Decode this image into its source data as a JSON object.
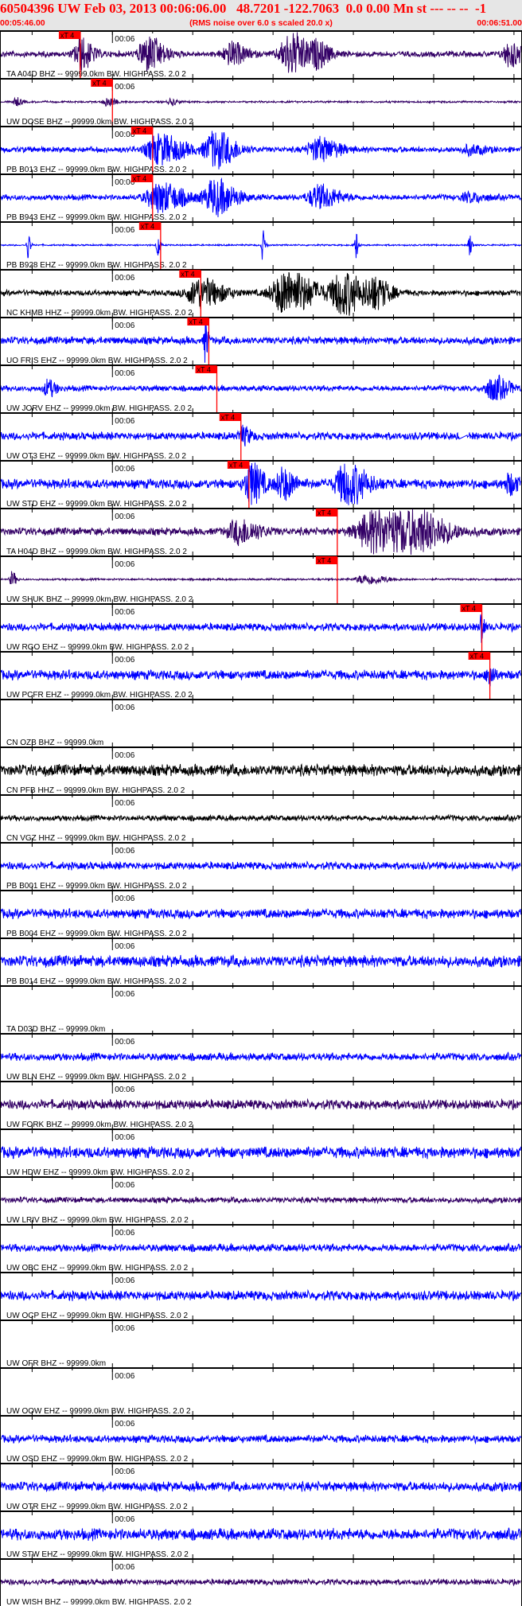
{
  "header": {
    "title": "60504396 UW Feb 03, 2013 00:06:06.00   48.7201 -122.7063  0.0 0.00 Mn st --- -- --  -1",
    "start_time": "00:05:46.00",
    "end_time": "00:06:51.00",
    "note": "(RMS noise over 6.0 s scaled 20.0 x)"
  },
  "axis": {
    "minute_label": "00:06",
    "major_tick_seconds": 10,
    "minor_tick_seconds": 5
  },
  "pick_label": "xT 4",
  "colors": {
    "header_text": "#ff0000",
    "header_bg": "#e6e6e6",
    "pick": "#ff0000",
    "navy": "#330066",
    "blue": "#0000ff",
    "black": "#000000"
  },
  "traces": [
    {
      "label": "TA A04D BHZ -- 99999.0km BW. HIGHPASS. 2.0  2",
      "color": "#330066",
      "pick": "00:05:56.0"
    },
    {
      "label": "UW DOSE BHZ -- 99999.0km BW. HIGHPASS. 2.0  2",
      "color": "#330066",
      "pick": "00:06:00.0"
    },
    {
      "label": "PB B013 EHZ -- 99999.0km BW. HIGHPASS. 2.0  2",
      "color": "#0000ff",
      "pick": "00:06:05.0"
    },
    {
      "label": "PB B943 EHZ -- 99999.0km BW. HIGHPASS. 2.0  2",
      "color": "#0000ff",
      "pick": "00:06:05.0"
    },
    {
      "label": "PB B928 EHZ -- 99999.0km BW. HIGHPASS. 2.0  2",
      "color": "#0000ff",
      "pick": "00:06:06.0"
    },
    {
      "label": "NC KHMB HHZ -- 99999.0km BW. HIGHPASS. 2.0  2",
      "color": "#000000",
      "pick": "00:06:11.0"
    },
    {
      "label": "UO FRIS EHZ -- 99999.0km BW. HIGHPASS. 2.0  2",
      "color": "#0000ff",
      "pick": "00:06:12.0"
    },
    {
      "label": "UW JORV EHZ -- 99999.0km BW. HIGHPASS. 2.0  2",
      "color": "#0000ff",
      "pick": "00:06:13.0"
    },
    {
      "label": "UW OT3 EHZ -- 99999.0km BW. HIGHPASS. 2.0  2",
      "color": "#0000ff",
      "pick": "00:06:16.0"
    },
    {
      "label": "UW STD EHZ -- 99999.0km BW. HIGHPASS. 2.0  2",
      "color": "#0000ff",
      "pick": "00:06:17.0"
    },
    {
      "label": "TA H04D BHZ -- 99999.0km BW. HIGHPASS. 2.0  2",
      "color": "#330066",
      "pick": "00:06:28.0"
    },
    {
      "label": "UW SHUK BHZ -- 99999.0km BW. HIGHPASS. 2.0  2",
      "color": "#330066",
      "pick": "00:06:28.0"
    },
    {
      "label": "UW RGO EHZ -- 99999.0km BW. HIGHPASS. 2.0  2",
      "color": "#0000ff",
      "pick": "00:06:46.0"
    },
    {
      "label": "UW PCFR EHZ -- 99999.0km BW. HIGHPASS. 2.0  2",
      "color": "#0000ff",
      "pick": "00:06:47.0"
    },
    {
      "label": "CN OZB BHZ -- 99999.0km",
      "color": null
    },
    {
      "label": "CN PFB HHZ -- 99999.0km BW. HIGHPASS. 2.0  2",
      "color": "#000000"
    },
    {
      "label": "CN VGZ HHZ -- 99999.0km BW. HIGHPASS. 2.0  2",
      "color": "#000000"
    },
    {
      "label": "PB B001 EHZ -- 99999.0km BW. HIGHPASS. 2.0  2",
      "color": "#0000ff"
    },
    {
      "label": "PB B004 EHZ -- 99999.0km BW. HIGHPASS. 2.0  2",
      "color": "#0000ff"
    },
    {
      "label": "PB B014 EHZ -- 99999.0km BW. HIGHPASS. 2.0  2",
      "color": "#0000ff"
    },
    {
      "label": "TA D03D BHZ -- 99999.0km",
      "color": null
    },
    {
      "label": "UW BLN EHZ -- 99999.0km BW. HIGHPASS. 2.0  2",
      "color": "#0000ff"
    },
    {
      "label": "UW FORK BHZ -- 99999.0km BW. HIGHPASS. 2.0  2",
      "color": "#330066"
    },
    {
      "label": "UW HDW EHZ -- 99999.0km BW. HIGHPASS. 2.0  2",
      "color": "#0000ff"
    },
    {
      "label": "UW LRIV BHZ -- 99999.0km BW. HIGHPASS. 2.0  2",
      "color": "#330066"
    },
    {
      "label": "UW OBC EHZ -- 99999.0km BW. HIGHPASS. 2.0  2",
      "color": "#0000ff"
    },
    {
      "label": "UW OCP EHZ -- 99999.0km BW. HIGHPASS. 2.0  2",
      "color": "#0000ff"
    },
    {
      "label": "UW OFR BHZ -- 99999.0km",
      "color": null
    },
    {
      "label": "UW OOW EHZ -- 99999.0km BW. HIGHPASS. 2.0  2",
      "color": null
    },
    {
      "label": "UW OSD EHZ -- 99999.0km BW. HIGHPASS. 2.0  2",
      "color": "#0000ff"
    },
    {
      "label": "UW OTR EHZ -- 99999.0km BW. HIGHPASS. 2.0  2",
      "color": "#0000ff"
    },
    {
      "label": "UW STW EHZ -- 99999.0km BW. HIGHPASS. 2.0  2",
      "color": "#0000ff"
    },
    {
      "label": "UW WISH BHZ -- 99999.0km BW. HIGHPASS. 2.0  2",
      "color": "#330066"
    }
  ]
}
